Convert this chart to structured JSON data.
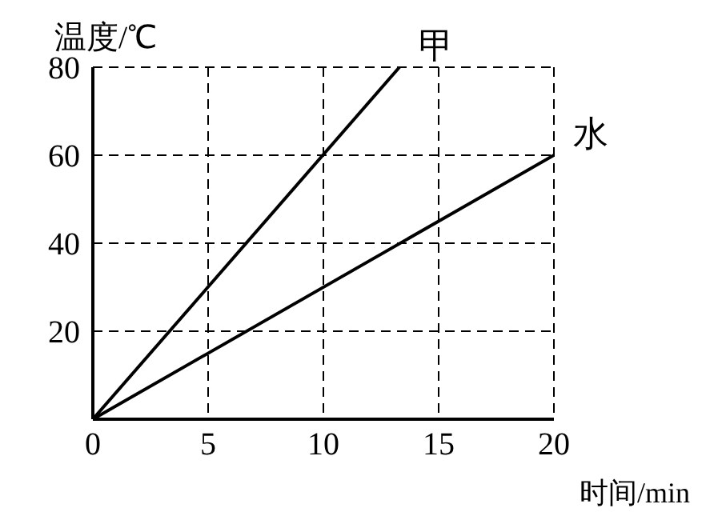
{
  "chart_data": {
    "type": "line",
    "xlabel": "时间/min",
    "ylabel": "温度/℃",
    "series": [
      {
        "name": "甲",
        "color": "#000000",
        "x": [
          0,
          13.3
        ],
        "values": [
          0,
          80
        ]
      },
      {
        "name": "水",
        "color": "#000000",
        "x": [
          0,
          20
        ],
        "values": [
          0,
          60
        ]
      }
    ],
    "xlim": [
      0,
      20
    ],
    "xticks": [
      0,
      5,
      10,
      15,
      20
    ],
    "ylim": [
      0,
      80
    ],
    "yticks": [
      20,
      40,
      60,
      80
    ],
    "grid": true,
    "marker": "none"
  }
}
